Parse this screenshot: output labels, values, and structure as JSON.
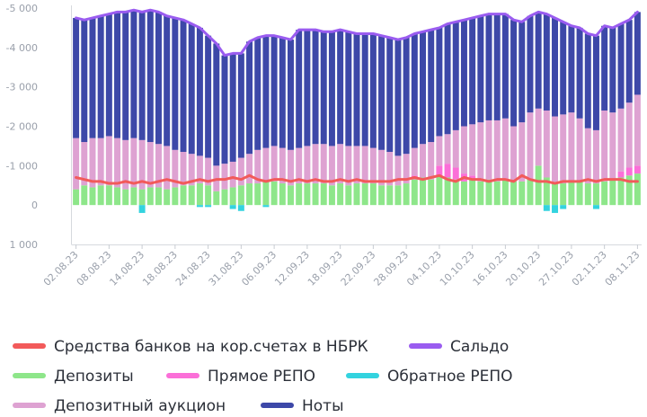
{
  "chart_data": {
    "type": "bar",
    "stacked": true,
    "categories": [
      "02.08.23",
      null,
      null,
      null,
      "08.08.23",
      null,
      null,
      null,
      "14.08.23",
      null,
      null,
      null,
      "18.08.23",
      null,
      null,
      null,
      "24.08.23",
      null,
      null,
      null,
      "31.08.23",
      null,
      null,
      null,
      "06.09.23",
      null,
      null,
      null,
      "12.09.23",
      null,
      null,
      null,
      "18.09.23",
      null,
      null,
      null,
      "22.09.23",
      null,
      null,
      null,
      "28.09.23",
      null,
      null,
      null,
      "04.10.23",
      null,
      null,
      null,
      "10.10.23",
      null,
      null,
      null,
      "16.10.23",
      null,
      null,
      null,
      "20.10.23",
      null,
      null,
      null,
      "27.10.23",
      null,
      null,
      null,
      "02.11.23",
      null,
      null,
      null,
      "08.11.23"
    ],
    "ylim": [
      -5000,
      1000
    ],
    "y_inverted": true,
    "yticks": [
      {
        "value": -5000,
        "label": "-5 000"
      },
      {
        "value": -4000,
        "label": "-4 000"
      },
      {
        "value": -3000,
        "label": "-3 000"
      },
      {
        "value": -2000,
        "label": "-2 000"
      },
      {
        "value": -1000,
        "label": "-1 000"
      },
      0,
      {
        "value": 1000,
        "label": "1 000"
      }
    ],
    "grid": false,
    "series": [
      {
        "name": "Средства банков на кор.счетах в НБРК",
        "type": "line",
        "color": "#f25a5a",
        "values": [
          -700,
          -650,
          -600,
          -600,
          -550,
          -550,
          -600,
          -550,
          -600,
          -550,
          -600,
          -650,
          -600,
          -550,
          -600,
          -650,
          -600,
          -650,
          -650,
          -700,
          -650,
          -750,
          -650,
          -600,
          -650,
          -650,
          -600,
          -650,
          -600,
          -650,
          -600,
          -600,
          -650,
          -600,
          -650,
          -600,
          -600,
          -600,
          -600,
          -650,
          -650,
          -700,
          -650,
          -700,
          -750,
          -650,
          -600,
          -700,
          -650,
          -650,
          -600,
          -650,
          -650,
          -600,
          -750,
          -650,
          -600,
          -600,
          -550,
          -600,
          -600,
          -600,
          -650,
          -600,
          -650,
          -650,
          -650,
          -600,
          -600
        ]
      },
      {
        "name": "Сальдо",
        "type": "line",
        "color": "#9a5cf0",
        "values": [
          -4750,
          -4700,
          -4750,
          -4800,
          -4850,
          -4900,
          -4900,
          -4950,
          -4900,
          -4950,
          -4900,
          -4800,
          -4750,
          -4700,
          -4600,
          -4500,
          -4300,
          -4100,
          -3800,
          -3850,
          -3850,
          -4150,
          -4250,
          -4300,
          -4300,
          -4250,
          -4200,
          -4450,
          -4450,
          -4450,
          -4400,
          -4400,
          -4450,
          -4400,
          -4350,
          -4350,
          -4350,
          -4300,
          -4250,
          -4200,
          -4250,
          -4350,
          -4400,
          -4450,
          -4500,
          -4600,
          -4650,
          -4700,
          -4750,
          -4800,
          -4850,
          -4850,
          -4850,
          -4700,
          -4650,
          -4800,
          -4900,
          -4850,
          -4750,
          -4650,
          -4550,
          -4500,
          -4350,
          -4300,
          -4550,
          -4500,
          -4600,
          -4700,
          -4900
        ]
      },
      {
        "name": "Депозиты",
        "type": "bar",
        "color": "#8ee68a",
        "values": [
          -400,
          -500,
          -450,
          -500,
          -500,
          -450,
          -400,
          -450,
          -400,
          -450,
          -450,
          -400,
          -450,
          -500,
          -500,
          -550,
          -500,
          -350,
          -400,
          -450,
          -500,
          -550,
          -550,
          -600,
          -600,
          -550,
          -500,
          -550,
          -550,
          -550,
          -550,
          -500,
          -550,
          -500,
          -550,
          -550,
          -550,
          -500,
          -500,
          -500,
          -550,
          -650,
          -700,
          -650,
          -750,
          -700,
          -650,
          -600,
          -650,
          -600,
          -650,
          -600,
          -650,
          -600,
          -600,
          -650,
          -1000,
          -700,
          -550,
          -550,
          -600,
          -600,
          -550,
          -550,
          -600,
          -650,
          -700,
          -750,
          -800
        ]
      },
      {
        "name": "Прямое РЕПО",
        "type": "bar",
        "color": "#fb6fd8",
        "values": [
          0,
          0,
          0,
          0,
          0,
          0,
          0,
          0,
          0,
          0,
          0,
          0,
          0,
          0,
          0,
          0,
          0,
          0,
          0,
          0,
          0,
          0,
          0,
          0,
          0,
          0,
          0,
          0,
          0,
          0,
          0,
          0,
          0,
          0,
          0,
          0,
          0,
          0,
          0,
          0,
          0,
          -100,
          0,
          0,
          -250,
          -350,
          -300,
          -200,
          -100,
          0,
          0,
          0,
          0,
          0,
          0,
          0,
          0,
          0,
          0,
          0,
          0,
          0,
          0,
          0,
          0,
          0,
          -150,
          -200,
          -200
        ]
      },
      {
        "name": "Обратное РЕПО",
        "type": "bar",
        "color": "#33d3df",
        "values": [
          0,
          0,
          0,
          0,
          0,
          0,
          0,
          0,
          200,
          0,
          0,
          0,
          0,
          0,
          0,
          50,
          50,
          0,
          0,
          100,
          150,
          0,
          0,
          50,
          0,
          0,
          0,
          0,
          0,
          0,
          0,
          0,
          0,
          0,
          0,
          0,
          0,
          0,
          0,
          0,
          0,
          0,
          0,
          0,
          0,
          0,
          0,
          0,
          0,
          0,
          0,
          0,
          0,
          0,
          0,
          0,
          0,
          150,
          200,
          100,
          0,
          0,
          0,
          100,
          0,
          0,
          0,
          0,
          0
        ]
      },
      {
        "name": "Депозитный аукцион",
        "type": "bar",
        "color": "#dea2d2",
        "values": [
          -1300,
          -1100,
          -1250,
          -1200,
          -1250,
          -1250,
          -1250,
          -1250,
          -1250,
          -1150,
          -1100,
          -1100,
          -950,
          -850,
          -800,
          -700,
          -700,
          -650,
          -650,
          -650,
          -700,
          -750,
          -850,
          -850,
          -900,
          -900,
          -900,
          -900,
          -950,
          -1000,
          -1000,
          -1000,
          -1000,
          -1000,
          -950,
          -950,
          -900,
          -900,
          -850,
          -750,
          -750,
          -700,
          -850,
          -950,
          -750,
          -750,
          -950,
          -1200,
          -1300,
          -1500,
          -1500,
          -1550,
          -1550,
          -1400,
          -1500,
          -1700,
          -1450,
          -1700,
          -1700,
          -1750,
          -1750,
          -1600,
          -1400,
          -1350,
          -1800,
          -1700,
          -1600,
          -1650,
          -1800
        ]
      },
      {
        "name": "Ноты",
        "type": "bar",
        "color": "#3d48a8",
        "values": [
          -3050,
          -3100,
          -3050,
          -3100,
          -3100,
          -3200,
          -3250,
          -3250,
          -3250,
          -3350,
          -3350,
          -3300,
          -3350,
          -3350,
          -3300,
          -3250,
          -3100,
          -3100,
          -2750,
          -2750,
          -2650,
          -2850,
          -2850,
          -2850,
          -2800,
          -2800,
          -2800,
          -3000,
          -2950,
          -2900,
          -2850,
          -2900,
          -2900,
          -2900,
          -2850,
          -2850,
          -2900,
          -2900,
          -2900,
          -2950,
          -2950,
          -2900,
          -2850,
          -2850,
          -2750,
          -2800,
          -2750,
          -2700,
          -2700,
          -2700,
          -2700,
          -2700,
          -2650,
          -2700,
          -2550,
          -2450,
          -2450,
          -2450,
          -2500,
          -2350,
          -2200,
          -2300,
          -2400,
          -2400,
          -2150,
          -2150,
          -2150,
          -2100,
          -2100
        ]
      }
    ]
  }
}
